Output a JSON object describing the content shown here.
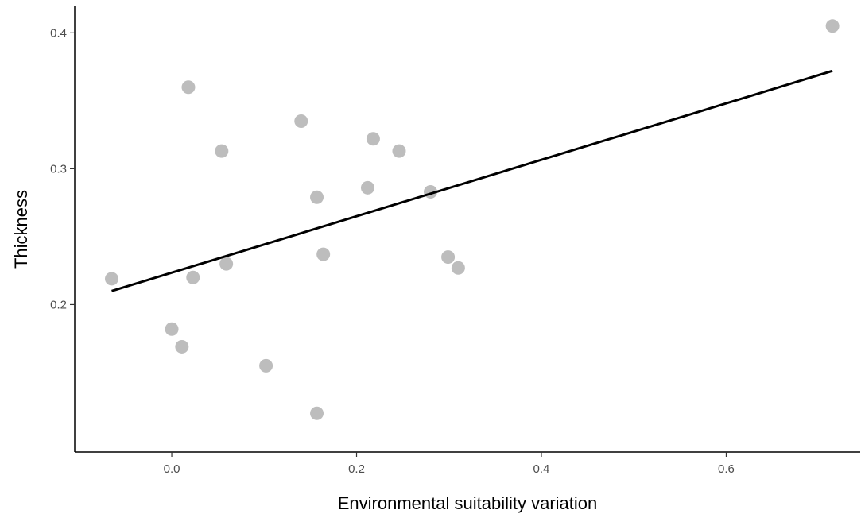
{
  "chart_data": {
    "type": "scatter",
    "xlabel": "Environmental suitability variation",
    "ylabel": "Thickness",
    "xlim": [
      -0.105,
      0.745
    ],
    "ylim": [
      0.0915,
      0.4195
    ],
    "x_ticks": [
      0.0,
      0.2,
      0.4,
      0.6
    ],
    "x_tick_labels": [
      "0.0",
      "0.2",
      "0.4",
      "0.6"
    ],
    "y_ticks": [
      0.2,
      0.3,
      0.4
    ],
    "y_tick_labels": [
      "0.2",
      "0.3",
      "0.4"
    ],
    "grid": false,
    "points": [
      {
        "x": -0.065,
        "y": 0.219
      },
      {
        "x": 0.0,
        "y": 0.182
      },
      {
        "x": 0.011,
        "y": 0.169
      },
      {
        "x": 0.018,
        "y": 0.36
      },
      {
        "x": 0.023,
        "y": 0.22
      },
      {
        "x": 0.054,
        "y": 0.313
      },
      {
        "x": 0.059,
        "y": 0.23
      },
      {
        "x": 0.102,
        "y": 0.155
      },
      {
        "x": 0.14,
        "y": 0.335
      },
      {
        "x": 0.157,
        "y": 0.279
      },
      {
        "x": 0.157,
        "y": 0.12
      },
      {
        "x": 0.164,
        "y": 0.237
      },
      {
        "x": 0.212,
        "y": 0.286
      },
      {
        "x": 0.218,
        "y": 0.322
      },
      {
        "x": 0.246,
        "y": 0.313
      },
      {
        "x": 0.28,
        "y": 0.283
      },
      {
        "x": 0.299,
        "y": 0.235
      },
      {
        "x": 0.31,
        "y": 0.227
      },
      {
        "x": 0.715,
        "y": 0.405
      }
    ],
    "fit_line": {
      "x": [
        -0.065,
        0.715
      ],
      "y": [
        0.21,
        0.372
      ]
    },
    "colors": {
      "points": "#bdbdbd",
      "line": "#000000",
      "axis": "#000000"
    }
  }
}
